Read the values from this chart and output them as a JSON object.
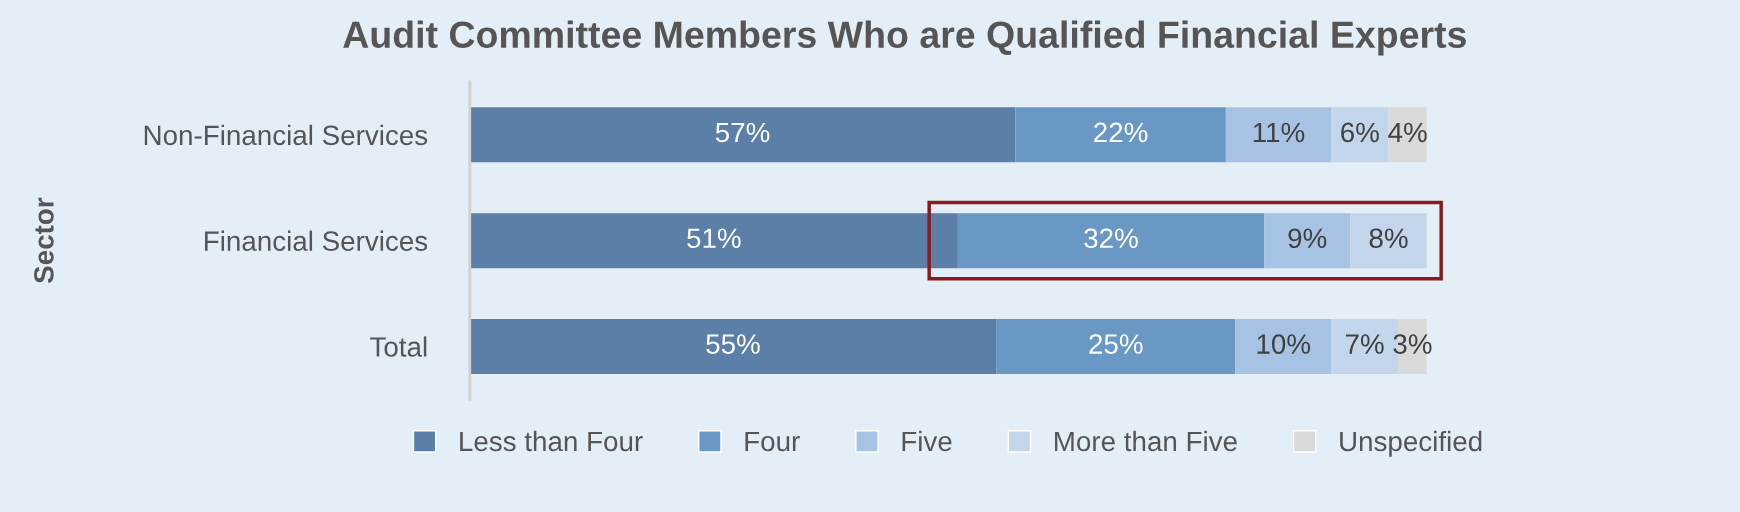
{
  "chart_data": {
    "type": "bar",
    "orientation": "horizontal",
    "stacked": true,
    "legend": "bottom",
    "grid": false,
    "title": "Audit Committee Members Who are Qualified Financial Experts",
    "ylabel": "Sector",
    "categories": [
      "Non-Financial Services",
      "Financial Services",
      "Total"
    ],
    "series": [
      {
        "name": "Less than Four",
        "color": "#5b7fa6",
        "values": [
          57,
          51,
          55
        ],
        "value_labels": [
          "57%",
          "51%",
          "55%"
        ]
      },
      {
        "name": "Four",
        "color": "#6a98c4",
        "values": [
          22,
          32,
          25
        ],
        "value_labels": [
          "22%",
          "32%",
          "25%"
        ]
      },
      {
        "name": "Five",
        "color": "#a7c3e3",
        "values": [
          11,
          9,
          10
        ],
        "value_labels": [
          "11%",
          "9%",
          "10%"
        ]
      },
      {
        "name": "More than Five",
        "color": "#c2d5ea",
        "values": [
          6,
          8,
          7
        ],
        "value_labels": [
          "6%",
          "8%",
          "7%"
        ]
      },
      {
        "name": "Unspecified",
        "color": "#d9d9d9",
        "values": [
          4,
          null,
          3
        ],
        "value_labels": [
          "4%",
          null,
          "3%"
        ]
      }
    ]
  }
}
